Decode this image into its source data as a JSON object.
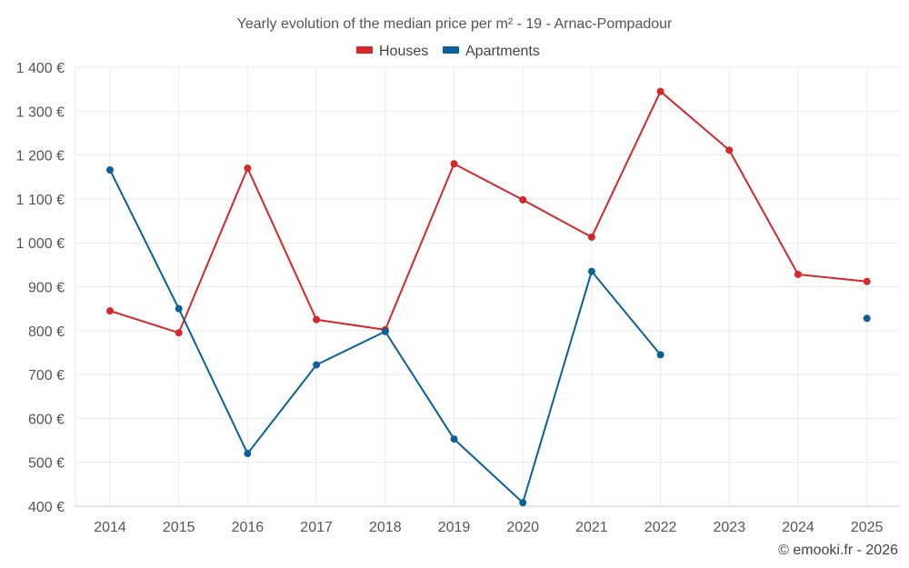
{
  "chart_data": {
    "type": "line",
    "title": "Yearly evolution of the median price per m² - 19 - Arnac-Pompadour",
    "categories": [
      "2014",
      "2015",
      "2016",
      "2017",
      "2018",
      "2019",
      "2020",
      "2021",
      "2022",
      "2023",
      "2024",
      "2025"
    ],
    "y_tick_labels": [
      "400 €",
      "500 €",
      "600 €",
      "700 €",
      "800 €",
      "900 €",
      "1 000 €",
      "1 100 €",
      "1 200 €",
      "1 300 €",
      "1 400 €"
    ],
    "y_ticks": [
      400,
      500,
      600,
      700,
      800,
      900,
      1000,
      1100,
      1200,
      1300,
      1400
    ],
    "ylim": [
      400,
      1400
    ],
    "xlabel": "",
    "ylabel": "",
    "legend_position": "top-center",
    "series": [
      {
        "name": "Houses",
        "color": "#d62728",
        "values": [
          845,
          795,
          1170,
          825,
          802,
          1180,
          1098,
          1013,
          1345,
          1211,
          928,
          912
        ]
      },
      {
        "name": "Apartments",
        "color": "#0a6199",
        "values": [
          1166,
          850,
          520,
          722,
          798,
          553,
          408,
          935,
          745,
          null,
          null,
          828
        ]
      }
    ],
    "credit": "© emooki.fr - 2026"
  }
}
